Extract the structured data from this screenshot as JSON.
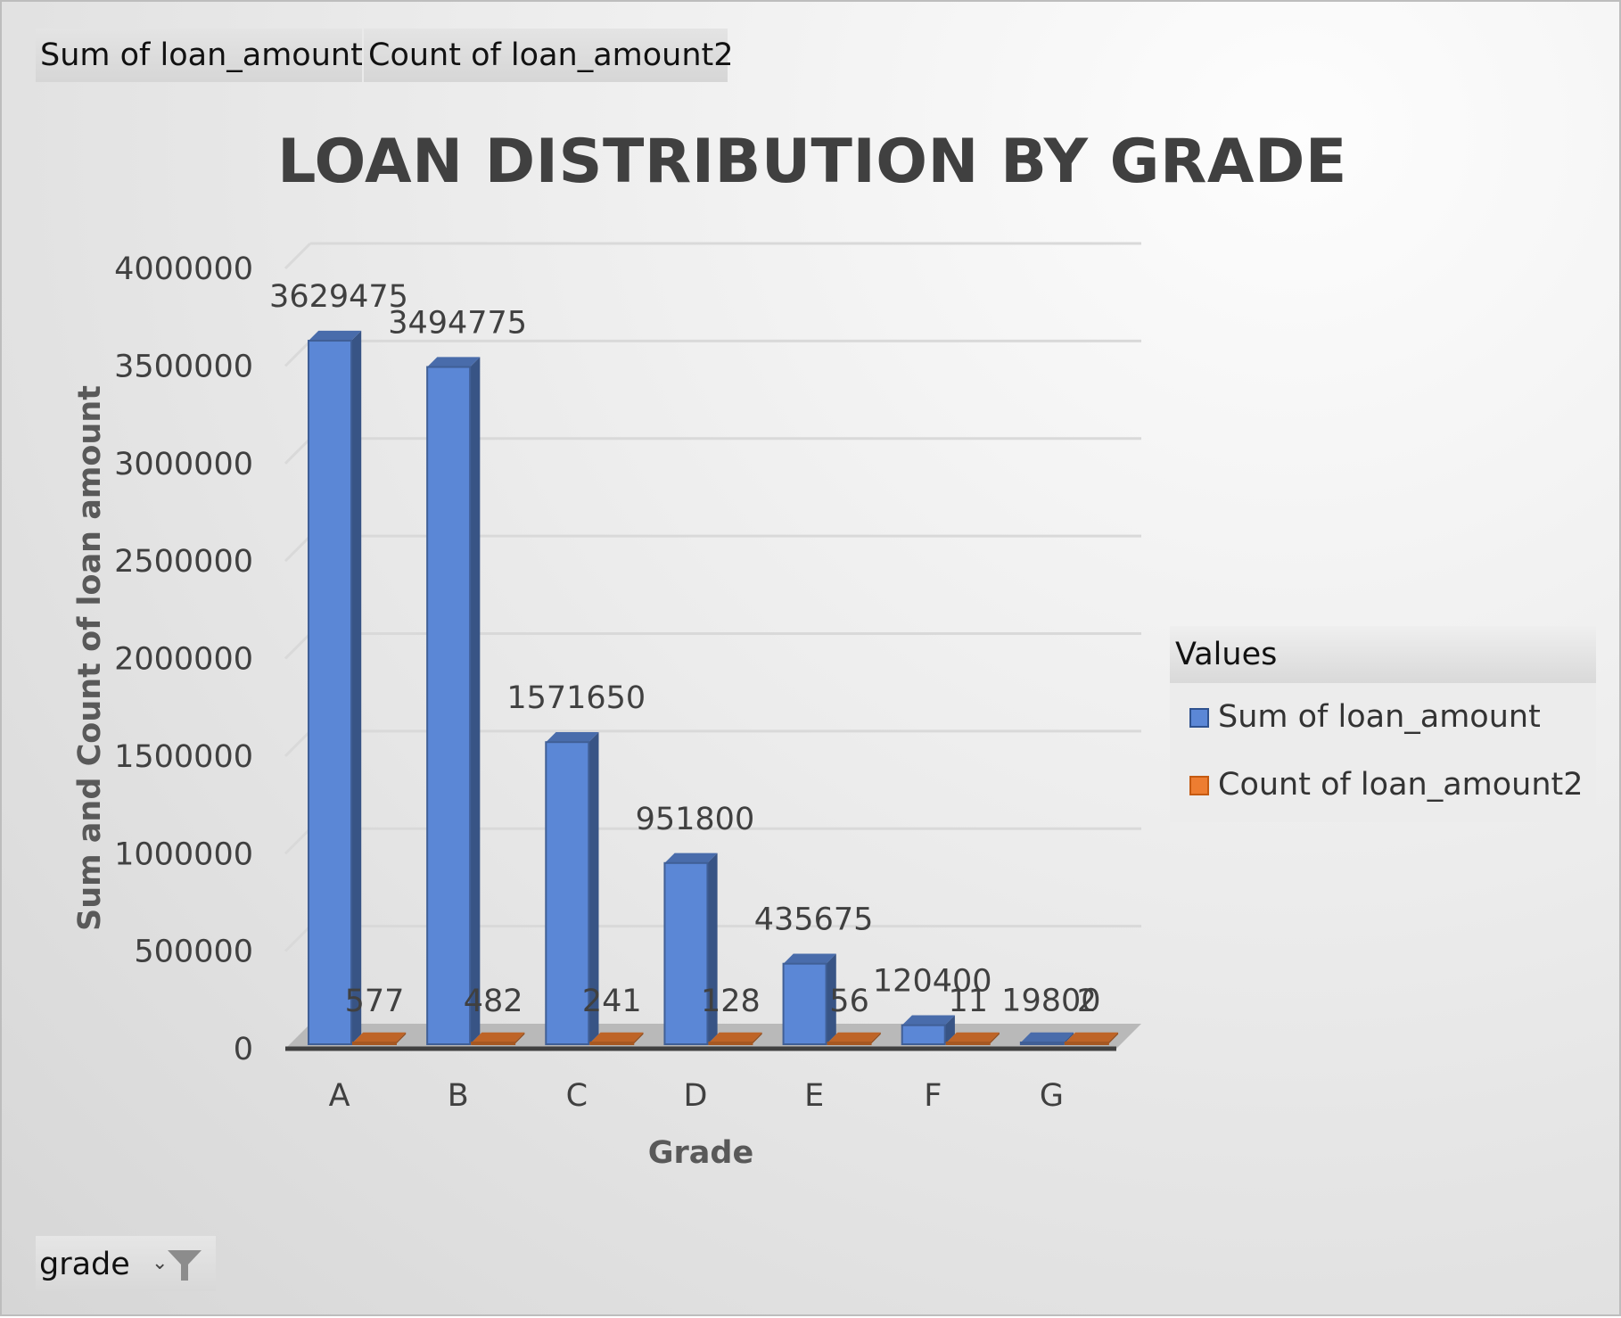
{
  "pivot": {
    "value_fields": [
      "Sum of loan_amount",
      "Count of loan_amount2"
    ],
    "filter_label": "grade",
    "filter_icon": "funnel-filter-icon",
    "dropdown_icon": "dropdown-arrow-icon"
  },
  "legend": {
    "title": "Values"
  },
  "colors": {
    "sum_series": "#5b87d6",
    "count_series": "#ed7d31",
    "axis": "#404040",
    "gridline": "#d9d9d9"
  },
  "chart_data": {
    "type": "bar",
    "style": "3d-clustered-column",
    "title": "LOAN DISTRIBUTION BY GRADE",
    "xlabel": "Grade",
    "ylabel": "Sum and Count of loan amount",
    "categories": [
      "A",
      "B",
      "C",
      "D",
      "E",
      "F",
      "G"
    ],
    "series": [
      {
        "name": "Sum of loan_amount",
        "values": [
          3629475,
          3494775,
          1571650,
          951800,
          435675,
          120400,
          19800
        ]
      },
      {
        "name": "Count of loan_amount2",
        "values": [
          577,
          482,
          241,
          128,
          56,
          11,
          2
        ]
      }
    ],
    "ylim": [
      0,
      4000000
    ],
    "yticks": [
      "0",
      "500000",
      "1000000",
      "1500000",
      "2000000",
      "2500000",
      "3000000",
      "3500000",
      "4000000"
    ],
    "grid": true,
    "legend_position": "right"
  }
}
